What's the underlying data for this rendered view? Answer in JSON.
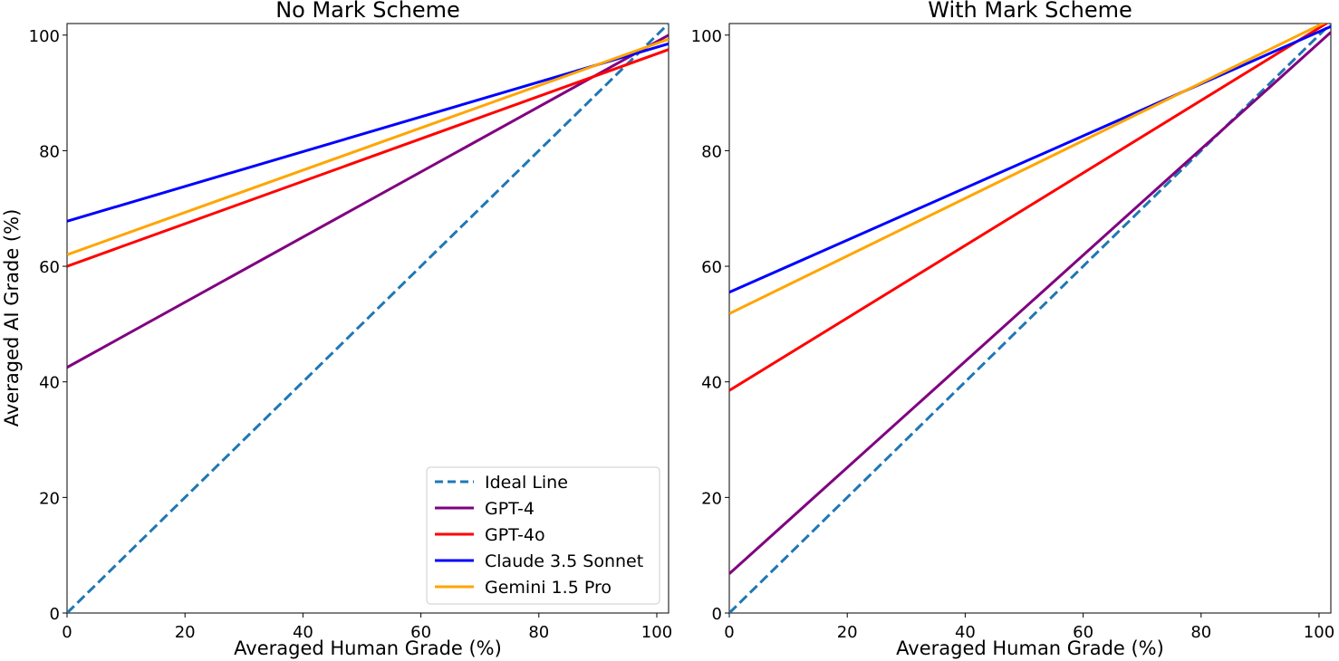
{
  "figure": {
    "ylabel": "Averaged AI Grade (%)"
  },
  "legend": {
    "placement": "lower-right",
    "entries": [
      {
        "label": "Ideal Line",
        "color": "#1f77b4",
        "dashed": true
      },
      {
        "label": "GPT-4",
        "color": "#800080",
        "dashed": false
      },
      {
        "label": "GPT-4o",
        "color": "#ff0000",
        "dashed": false
      },
      {
        "label": "Claude 3.5 Sonnet",
        "color": "#0000ff",
        "dashed": false
      },
      {
        "label": "Gemini 1.5 Pro",
        "color": "#ffa500",
        "dashed": false
      }
    ]
  },
  "chart_data": [
    {
      "type": "line",
      "title": "No Mark Scheme",
      "xlabel": "Averaged Human Grade (%)",
      "ylabel": "Averaged AI Grade (%)",
      "xlim": [
        0,
        102
      ],
      "ylim": [
        0,
        102
      ],
      "xticks": [
        0,
        20,
        40,
        60,
        80,
        100
      ],
      "yticks": [
        0,
        20,
        40,
        60,
        80,
        100
      ],
      "grid": false,
      "legend": "lower-right",
      "series": [
        {
          "name": "Ideal Line",
          "color": "#1f77b4",
          "dashed": true,
          "x": [
            0,
            102
          ],
          "y": [
            0,
            102
          ]
        },
        {
          "name": "GPT-4",
          "color": "#800080",
          "dashed": false,
          "x": [
            0,
            102
          ],
          "y": [
            42.5,
            100
          ]
        },
        {
          "name": "GPT-4o",
          "color": "#ff0000",
          "dashed": false,
          "x": [
            0,
            102
          ],
          "y": [
            60,
            97.5
          ]
        },
        {
          "name": "Claude 3.5 Sonnet",
          "color": "#0000ff",
          "dashed": false,
          "x": [
            0,
            102
          ],
          "y": [
            67.8,
            98.5
          ]
        },
        {
          "name": "Gemini 1.5 Pro",
          "color": "#ffa500",
          "dashed": false,
          "x": [
            0,
            102
          ],
          "y": [
            62,
            99.3
          ]
        }
      ]
    },
    {
      "type": "line",
      "title": "With Mark Scheme",
      "xlabel": "Averaged Human Grade (%)",
      "ylabel": "",
      "xlim": [
        0,
        102
      ],
      "ylim": [
        0,
        102
      ],
      "xticks": [
        0,
        20,
        40,
        60,
        80,
        100
      ],
      "yticks": [
        0,
        20,
        40,
        60,
        80,
        100
      ],
      "grid": false,
      "legend": "",
      "series": [
        {
          "name": "Ideal Line",
          "color": "#1f77b4",
          "dashed": true,
          "x": [
            0,
            102
          ],
          "y": [
            0,
            102
          ]
        },
        {
          "name": "GPT-4",
          "color": "#800080",
          "dashed": false,
          "x": [
            0,
            102
          ],
          "y": [
            6.8,
            100.5
          ]
        },
        {
          "name": "GPT-4o",
          "color": "#ff0000",
          "dashed": false,
          "x": [
            0,
            102
          ],
          "y": [
            38.5,
            102.5
          ]
        },
        {
          "name": "Claude 3.5 Sonnet",
          "color": "#0000ff",
          "dashed": false,
          "x": [
            0,
            102
          ],
          "y": [
            55.5,
            101.5
          ]
        },
        {
          "name": "Gemini 1.5 Pro",
          "color": "#ffa500",
          "dashed": false,
          "x": [
            0,
            102
          ],
          "y": [
            51.8,
            102.7
          ]
        }
      ]
    }
  ]
}
